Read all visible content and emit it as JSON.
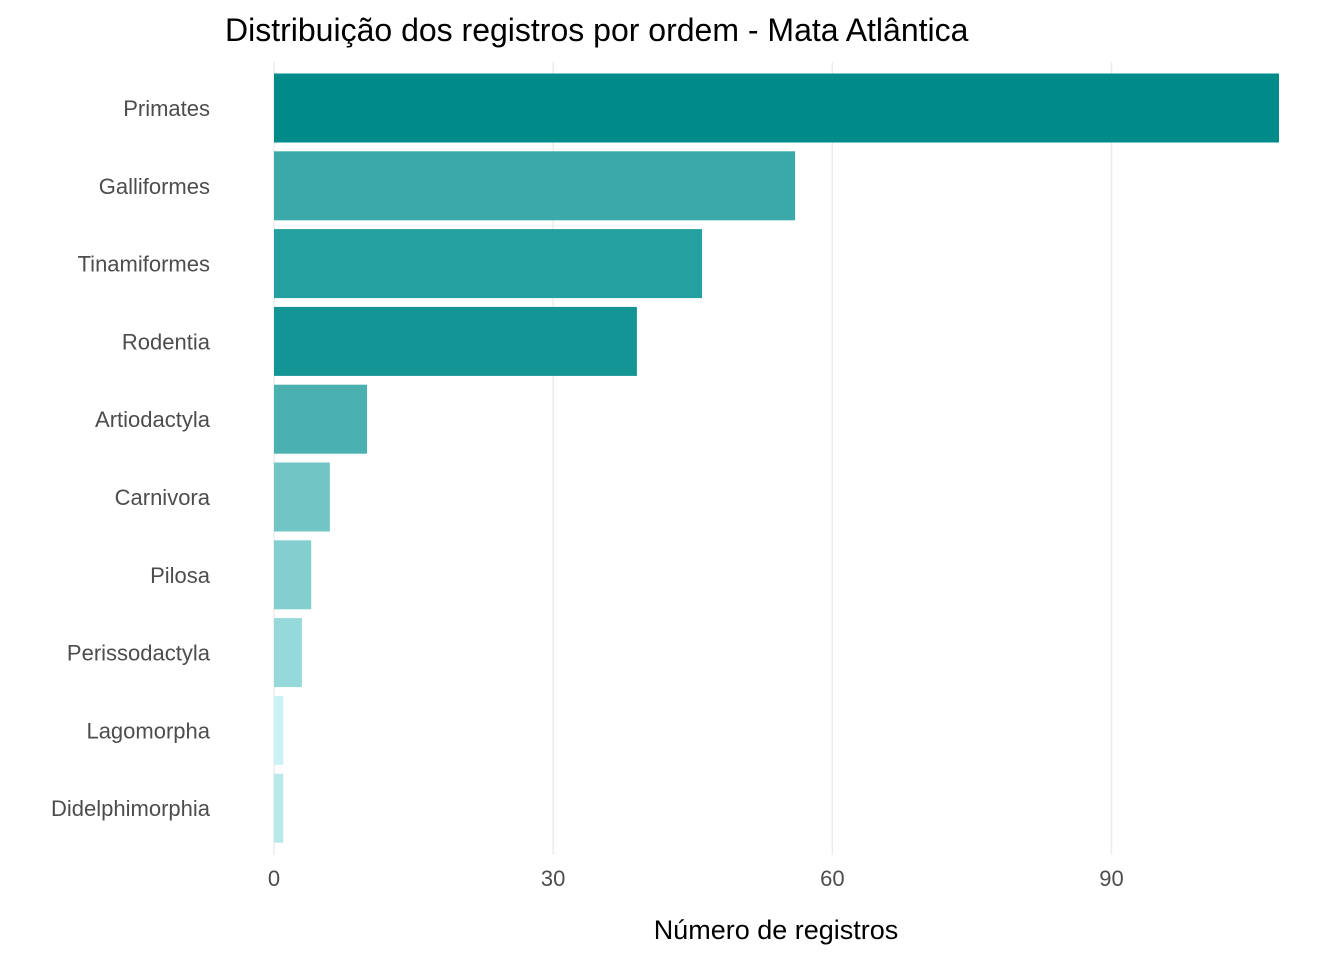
{
  "chart_data": {
    "type": "bar",
    "orientation": "horizontal",
    "title": "Distribuição dos registros por ordem - Mata Atlântica",
    "xlabel": "Número de registros",
    "ylabel": "",
    "xlim": [
      0,
      108
    ],
    "x_ticks": [
      0,
      30,
      60,
      90
    ],
    "grid": true,
    "legend": "none",
    "categories": [
      "Primates",
      "Galliformes",
      "Tinamiformes",
      "Rodentia",
      "Artiodactyla",
      "Carnivora",
      "Pilosa",
      "Perissodactyla",
      "Lagomorpha",
      "Didelphimorphia"
    ],
    "values": [
      108,
      56,
      46,
      39,
      10,
      6,
      4,
      3,
      1,
      1
    ],
    "colors": [
      "#008b8b",
      "#3ba9aa",
      "#23a09f",
      "#129594",
      "#4ab0b0",
      "#71c5c5",
      "#83cfd0",
      "#95d9da",
      "#cbf2f4",
      "#b8eaec"
    ]
  }
}
